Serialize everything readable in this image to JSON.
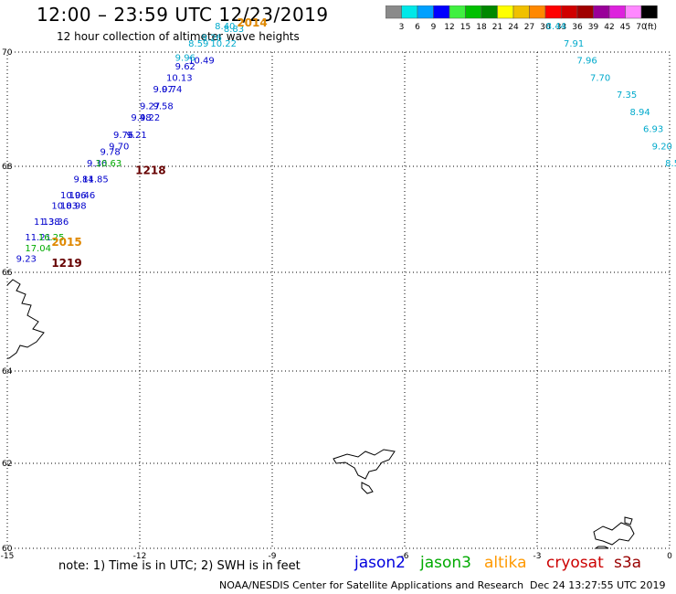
{
  "title": "12:00 – 23:59 UTC 12/23/2019",
  "subtitle": "12 hour collection of altimeter wave heights",
  "colorbar": {
    "unit": "(ft)",
    "ticks": [
      "3",
      "6",
      "9",
      "12",
      "15",
      "18",
      "21",
      "24",
      "27",
      "30",
      "33",
      "36",
      "39",
      "42",
      "45",
      "70"
    ],
    "colors": [
      "#8a8a8a",
      "#00e8e8",
      "#00a0ff",
      "#0000ff",
      "#40f040",
      "#00c000",
      "#008800",
      "#ffff00",
      "#f0c000",
      "#ff8800",
      "#ff0000",
      "#d00000",
      "#a00000",
      "#990099",
      "#dd22dd",
      "#ff88ff",
      "#000000"
    ]
  },
  "axes": {
    "x_ticks": [
      "-15",
      "-12",
      "-9",
      "-6",
      "-3",
      "0"
    ],
    "y_ticks": [
      "70",
      "68",
      "66",
      "64",
      "62",
      "60"
    ]
  },
  "tracks": [
    {
      "satellite": "jason2",
      "color": "#0000cc",
      "labels": [
        {
          "text": "9.23",
          "lon": -14.8,
          "lat": 66.2
        },
        {
          "text": "11.21",
          "lon": -14.6,
          "lat": 66.6
        },
        {
          "text": "11.38",
          "lon": -14.4,
          "lat": 66.9
        },
        {
          "text": "13.36",
          "lon": -14.2,
          "lat": 66.9
        },
        {
          "text": "10.83",
          "lon": -14.0,
          "lat": 67.2
        },
        {
          "text": "10.98",
          "lon": -13.8,
          "lat": 67.2
        },
        {
          "text": "10.96",
          "lon": -13.8,
          "lat": 67.4
        },
        {
          "text": "10.46",
          "lon": -13.6,
          "lat": 67.4
        },
        {
          "text": "9.84",
          "lon": -13.5,
          "lat": 67.7
        },
        {
          "text": "11.85",
          "lon": -13.3,
          "lat": 67.7
        },
        {
          "text": "9.36",
          "lon": -13.2,
          "lat": 68.0
        },
        {
          "text": "9.78",
          "lon": -12.9,
          "lat": 68.2
        },
        {
          "text": "9.70",
          "lon": -12.7,
          "lat": 68.3
        },
        {
          "text": "9.76",
          "lon": -12.6,
          "lat": 68.5
        },
        {
          "text": "9.21",
          "lon": -12.3,
          "lat": 68.5
        },
        {
          "text": "9.48",
          "lon": -12.2,
          "lat": 68.8
        },
        {
          "text": "9.22",
          "lon": -12.0,
          "lat": 68.8
        },
        {
          "text": "9.27",
          "lon": -12.0,
          "lat": 69.0
        },
        {
          "text": "9.58",
          "lon": -11.7,
          "lat": 69.0
        },
        {
          "text": "9.07",
          "lon": -11.7,
          "lat": 69.3
        },
        {
          "text": "9.74",
          "lon": -11.5,
          "lat": 69.3
        },
        {
          "text": "10.13",
          "lon": -11.4,
          "lat": 69.5
        },
        {
          "text": "9.62",
          "lon": -11.2,
          "lat": 69.7
        },
        {
          "text": "10.49",
          "lon": -10.9,
          "lat": 69.8
        }
      ]
    },
    {
      "satellite": "jason3",
      "color": "#00aa00",
      "labels": [
        {
          "text": "17.04",
          "lon": -14.6,
          "lat": 66.4
        },
        {
          "text": "16.25",
          "lon": -14.3,
          "lat": 66.6
        },
        {
          "text": "10.63",
          "lon": -13.0,
          "lat": 68.0
        }
      ]
    },
    {
      "satellite": "altika",
      "color": "#00aacc",
      "labels": [
        {
          "text": "9.96",
          "lon": -11.2,
          "lat": 69.85
        },
        {
          "text": "8.59",
          "lon": -10.9,
          "lat": 70.1
        },
        {
          "text": "9.26",
          "lon": -10.6,
          "lat": 70.2
        },
        {
          "text": "10.22",
          "lon": -10.4,
          "lat": 70.1
        },
        {
          "text": "8.40",
          "lon": -10.3,
          "lat": 70.4
        },
        {
          "text": "8.83",
          "lon": -10.1,
          "lat": 70.35
        },
        {
          "text": "8.44",
          "lon": -2.8,
          "lat": 70.4
        },
        {
          "text": "7.91",
          "lon": -2.4,
          "lat": 70.1
        },
        {
          "text": "7.96",
          "lon": -2.1,
          "lat": 69.8
        },
        {
          "text": "7.70",
          "lon": -1.8,
          "lat": 69.5
        },
        {
          "text": "7.35",
          "lon": -1.2,
          "lat": 69.2
        },
        {
          "text": "8.94",
          "lon": -0.9,
          "lat": 68.9
        },
        {
          "text": "6.93",
          "lon": -0.6,
          "lat": 68.6
        },
        {
          "text": "9.20",
          "lon": -0.4,
          "lat": 68.3
        },
        {
          "text": "8.5",
          "lon": -0.1,
          "lat": 68.0
        }
      ]
    }
  ],
  "pass_labels": [
    {
      "text": "2014",
      "lon": -9.8,
      "lat": 70.45,
      "color": "#e08800"
    },
    {
      "text": "1218",
      "lon": -12.1,
      "lat": 67.85,
      "color": "#660000"
    },
    {
      "text": "2015",
      "lon": -14.0,
      "lat": 66.5,
      "color": "#e08800"
    },
    {
      "text": "1219",
      "lon": -14.0,
      "lat": 66.1,
      "color": "#660000"
    }
  ],
  "note": "note:  1) Time is in UTC;  2) SWH is in feet",
  "legend": [
    {
      "label": "jason2",
      "color": "#0000dd"
    },
    {
      "label": "jason3",
      "color": "#00aa00"
    },
    {
      "label": "altika",
      "color": "#ff9900"
    },
    {
      "label": "cryosat",
      "color": "#cc0000"
    },
    {
      "label": "s3a",
      "color": "#990000"
    }
  ],
  "credit": "NOAA/NESDIS Center for Satellite Applications and Research",
  "timestamp": "Dec 24 13:27:55 UTC 2019"
}
